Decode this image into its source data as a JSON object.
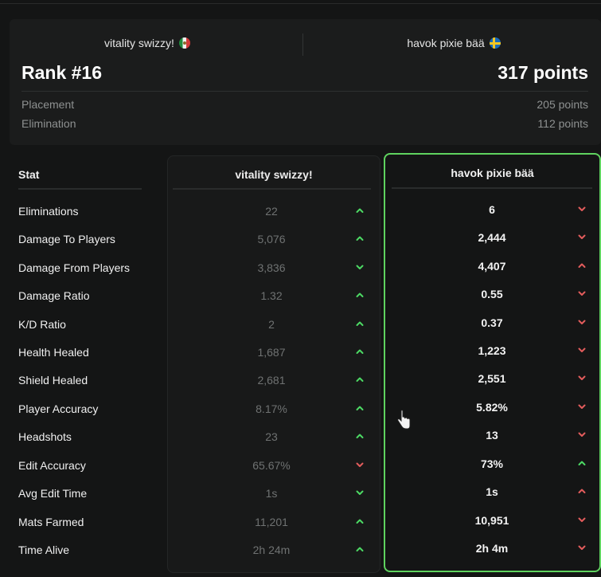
{
  "header": {
    "player1": {
      "name": "vitality swizzy!",
      "flag": "mexico-flag-icon"
    },
    "player2": {
      "name": "havok pixie bää",
      "flag": "sweden-flag-icon"
    },
    "rank": "Rank #16",
    "total_points": "317 points",
    "breakdown": [
      {
        "label": "Placement",
        "value": "205 points"
      },
      {
        "label": "Elimination",
        "value": "112 points"
      }
    ]
  },
  "stats": {
    "header": "Stat",
    "col1_title": "vitality swizzy!",
    "col2_title": "havok pixie bää",
    "rows": [
      {
        "label": "Eliminations",
        "p1": "22",
        "p1_dir": "up",
        "p2": "6",
        "p2_dir": "down"
      },
      {
        "label": "Damage To Players",
        "p1": "5,076",
        "p1_dir": "up",
        "p2": "2,444",
        "p2_dir": "down"
      },
      {
        "label": "Damage From Players",
        "p1": "3,836",
        "p1_dir": "down",
        "p2": "4,407",
        "p2_dir": "up"
      },
      {
        "label": "Damage Ratio",
        "p1": "1.32",
        "p1_dir": "up",
        "p2": "0.55",
        "p2_dir": "down"
      },
      {
        "label": "K/D Ratio",
        "p1": "2",
        "p1_dir": "up",
        "p2": "0.37",
        "p2_dir": "down"
      },
      {
        "label": "Health Healed",
        "p1": "1,687",
        "p1_dir": "up",
        "p2": "1,223",
        "p2_dir": "down"
      },
      {
        "label": "Shield Healed",
        "p1": "2,681",
        "p1_dir": "up",
        "p2": "2,551",
        "p2_dir": "down"
      },
      {
        "label": "Player Accuracy",
        "p1": "8.17%",
        "p1_dir": "up",
        "p2": "5.82%",
        "p2_dir": "down"
      },
      {
        "label": "Headshots",
        "p1": "23",
        "p1_dir": "up",
        "p2": "13",
        "p2_dir": "down"
      },
      {
        "label": "Edit Accuracy",
        "p1": "65.67%",
        "p1_dir": "down",
        "p2": "73%",
        "p2_dir": "up"
      },
      {
        "label": "Avg Edit Time",
        "p1": "1s",
        "p1_dir": "down",
        "p2": "1s",
        "p2_dir": "up"
      },
      {
        "label": "Mats Farmed",
        "p1": "11,201",
        "p1_dir": "up",
        "p2": "10,951",
        "p2_dir": "down"
      },
      {
        "label": "Time Alive",
        "p1": "2h 24m",
        "p1_dir": "up",
        "p2": "2h 4m",
        "p2_dir": "down"
      }
    ]
  },
  "colors": {
    "better": "#4cd964",
    "worse": "#e25c5c",
    "highlight_border": "#5fd35f"
  }
}
